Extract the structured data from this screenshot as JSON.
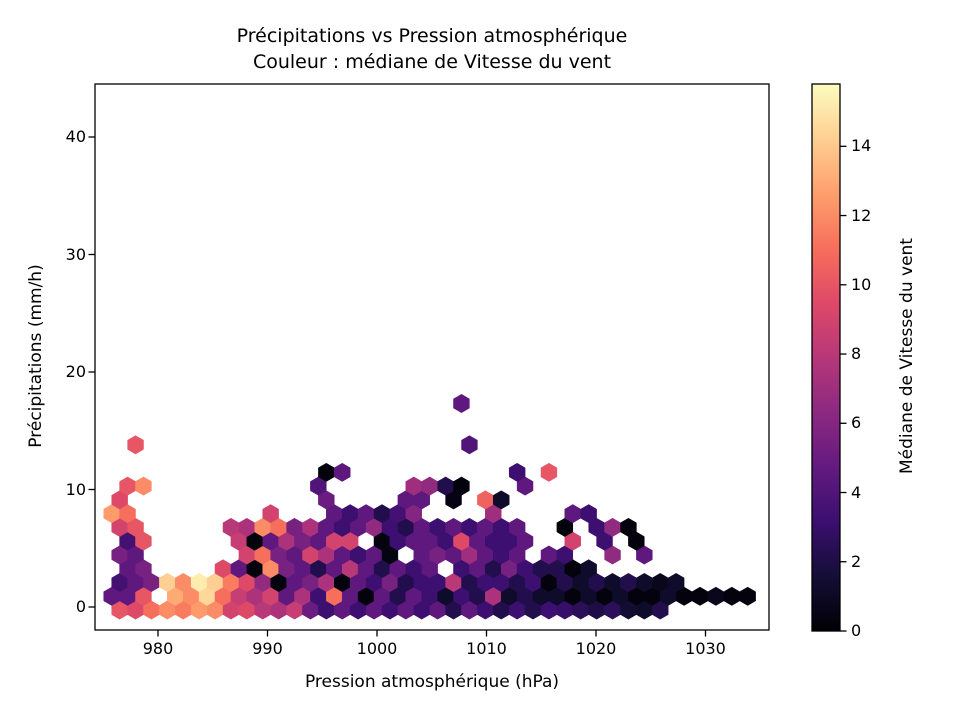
{
  "figure": {
    "title_line1": "Précipitations vs Pression atmosphérique",
    "title_line2": "Couleur : médiane de Vitesse du vent"
  },
  "chart_data": {
    "type": "hexbin",
    "title": "Précipitations vs Pression atmosphérique\nCouleur : médiane de Vitesse du vent",
    "xlabel": "Pression atmosphérique (hPa)",
    "ylabel": "Précipitations (mm/h)",
    "colorbar_label": "Médiane de Vitesse du vent",
    "xlim": [
      974.2,
      1035.8
    ],
    "ylim": [
      -2.0,
      44.5
    ],
    "x_ticks": [
      980,
      990,
      1000,
      1010,
      1020,
      1030
    ],
    "y_ticks": [
      0,
      10,
      20,
      30,
      40
    ],
    "colorbar_ticks": [
      0,
      2,
      4,
      6,
      8,
      10,
      12,
      14
    ],
    "vmin": 0,
    "vmax": 15.8,
    "colormap": "magma",
    "colormap_stops": [
      "#000004",
      "#140e36",
      "#3b0f70",
      "#641a80",
      "#8c2981",
      "#b73779",
      "#de4968",
      "#f76f5c",
      "#fe9f6d",
      "#fecf92",
      "#fcfdbf"
    ],
    "hex_grid": {
      "pressure_origin_hpa": 975.77,
      "pressure_step_hpa": 1.452,
      "even_row_offset_hpa": 0.726,
      "precip_origin_mmh": -0.26,
      "precip_step_mmh": 1.172,
      "note": "cells are [column_index, median_wind_value]; pressure = origin + step*i + (j even ? offset : 0); precip = origin + step*j"
    },
    "rows": [
      {
        "j": 0,
        "cells": [
          [
            0,
            10
          ],
          [
            1,
            9.5
          ],
          [
            2,
            11
          ],
          [
            3,
            12
          ],
          [
            4,
            11.5
          ],
          [
            5,
            12.5
          ],
          [
            6,
            12
          ],
          [
            7,
            9
          ],
          [
            8,
            9.5
          ],
          [
            9,
            8
          ],
          [
            10,
            7.5
          ],
          [
            11,
            8.5
          ],
          [
            12,
            5
          ],
          [
            13,
            3.2
          ],
          [
            14,
            4.5
          ],
          [
            15,
            3.2
          ],
          [
            16,
            4.5
          ],
          [
            17,
            3.2
          ],
          [
            18,
            4.5
          ],
          [
            19,
            3.2
          ],
          [
            20,
            4.5
          ],
          [
            21,
            2.2
          ],
          [
            22,
            4.5
          ],
          [
            23,
            3.2
          ],
          [
            24,
            2.2
          ],
          [
            25,
            3.2
          ],
          [
            26,
            2.2
          ],
          [
            27,
            3.2
          ],
          [
            28,
            3
          ],
          [
            29,
            2.5
          ],
          [
            30,
            2
          ],
          [
            31,
            2.5
          ],
          [
            32,
            1.5
          ],
          [
            33,
            1.2
          ],
          [
            34,
            2.2
          ]
        ]
      },
      {
        "j": 1,
        "cells": [
          [
            0,
            4.5
          ],
          [
            1,
            4.5
          ],
          [
            2,
            10
          ],
          [
            4,
            13
          ],
          [
            5,
            12
          ],
          [
            6,
            14.5
          ],
          [
            7,
            11
          ],
          [
            8,
            8.5
          ],
          [
            9,
            7.5
          ],
          [
            10,
            9
          ],
          [
            11,
            4.5
          ],
          [
            12,
            7.5
          ],
          [
            13,
            3.2
          ],
          [
            14,
            11
          ],
          [
            15,
            4.5
          ],
          [
            16,
            0.3
          ],
          [
            17,
            4.5
          ],
          [
            18,
            2.2
          ],
          [
            19,
            4.5
          ],
          [
            20,
            3.2
          ],
          [
            21,
            1.2
          ],
          [
            22,
            3.2
          ],
          [
            23,
            2.2
          ],
          [
            24,
            7.5
          ],
          [
            25,
            1.2
          ],
          [
            26,
            2.2
          ],
          [
            27,
            1.2
          ],
          [
            28,
            1.2
          ],
          [
            29,
            0.3
          ],
          [
            30,
            1.2
          ],
          [
            31,
            0.3
          ],
          [
            32,
            1.2
          ],
          [
            33,
            0.3
          ],
          [
            34,
            0.3
          ],
          [
            35,
            1.2
          ],
          [
            36,
            0.3
          ],
          [
            37,
            0.3
          ],
          [
            38,
            0.8
          ],
          [
            39,
            0.3
          ],
          [
            40,
            0.3
          ]
        ]
      },
      {
        "j": 2,
        "cells": [
          [
            0,
            3.5
          ],
          [
            1,
            4.5
          ],
          [
            2,
            5.5
          ],
          [
            3,
            14.2
          ],
          [
            4,
            12
          ],
          [
            5,
            15.2
          ],
          [
            6,
            14.2
          ],
          [
            7,
            11.5
          ],
          [
            8,
            9.5
          ],
          [
            9,
            6.5
          ],
          [
            10,
            0.3
          ],
          [
            11,
            4.5
          ],
          [
            12,
            5.5
          ],
          [
            13,
            7.5
          ],
          [
            14,
            0.3
          ],
          [
            15,
            4.5
          ],
          [
            16,
            3.2
          ],
          [
            17,
            5.5
          ],
          [
            18,
            2.2
          ],
          [
            19,
            3.2
          ],
          [
            20,
            3.2
          ],
          [
            21,
            8
          ],
          [
            22,
            2.2
          ],
          [
            23,
            3.2
          ],
          [
            24,
            3.2
          ],
          [
            25,
            2.2
          ],
          [
            26,
            3.2
          ],
          [
            27,
            0.3
          ],
          [
            28,
            2.2
          ],
          [
            29,
            1.2
          ],
          [
            30,
            2.2
          ],
          [
            31,
            1.2
          ],
          [
            32,
            2.2
          ],
          [
            33,
            1.2
          ],
          [
            34,
            0.8
          ],
          [
            35,
            1.2
          ]
        ]
      },
      {
        "j": 3,
        "cells": [
          [
            1,
            4.5
          ],
          [
            2,
            5.5
          ],
          [
            7,
            9.5
          ],
          [
            8,
            4.5
          ],
          [
            9,
            0.3
          ],
          [
            10,
            12
          ],
          [
            11,
            5.5
          ],
          [
            12,
            4.5
          ],
          [
            13,
            2.2
          ],
          [
            14,
            4.5
          ],
          [
            15,
            8
          ],
          [
            16,
            4.5
          ],
          [
            17,
            2.2
          ],
          [
            18,
            4.5
          ],
          [
            19,
            3.2
          ],
          [
            20,
            4.5
          ],
          [
            22,
            3.2
          ],
          [
            23,
            4.5
          ],
          [
            24,
            2.2
          ],
          [
            25,
            5.5
          ],
          [
            26,
            3.2
          ],
          [
            27,
            2.2
          ],
          [
            28,
            2.2
          ],
          [
            29,
            0.3
          ],
          [
            30,
            1.2
          ]
        ]
      },
      {
        "j": 4,
        "cells": [
          [
            0,
            5.5
          ],
          [
            1,
            4.5
          ],
          [
            8,
            9
          ],
          [
            9,
            11
          ],
          [
            10,
            5.5
          ],
          [
            11,
            4.5
          ],
          [
            12,
            9
          ],
          [
            13,
            7.5
          ],
          [
            14,
            4.5
          ],
          [
            15,
            3.2
          ],
          [
            16,
            4.5
          ],
          [
            17,
            0.4
          ],
          [
            19,
            4.5
          ],
          [
            20,
            5.5
          ],
          [
            21,
            4.5
          ],
          [
            22,
            7
          ],
          [
            23,
            4.5
          ],
          [
            24,
            3.2
          ],
          [
            25,
            4.5
          ],
          [
            27,
            4.5
          ],
          [
            28,
            3.2
          ],
          [
            31,
            6.5
          ],
          [
            33,
            4.5
          ]
        ]
      },
      {
        "j": 5,
        "cells": [
          [
            1,
            3.5
          ],
          [
            2,
            10
          ],
          [
            8,
            8.5
          ],
          [
            9,
            0.3
          ],
          [
            10,
            4.5
          ],
          [
            11,
            7.5
          ],
          [
            12,
            5.5
          ],
          [
            13,
            4.5
          ],
          [
            14,
            9
          ],
          [
            15,
            9
          ],
          [
            17,
            0.4
          ],
          [
            18,
            3.2
          ],
          [
            19,
            4.5
          ],
          [
            20,
            4.5
          ],
          [
            21,
            3.2
          ],
          [
            22,
            9.5
          ],
          [
            23,
            4.5
          ],
          [
            24,
            3.2
          ],
          [
            25,
            3.2
          ],
          [
            26,
            4.5
          ],
          [
            29,
            9
          ],
          [
            31,
            3.2
          ],
          [
            33,
            0.3
          ]
        ]
      },
      {
        "j": 6,
        "cells": [
          [
            0,
            9
          ],
          [
            1,
            10
          ],
          [
            7,
            8
          ],
          [
            8,
            7.5
          ],
          [
            9,
            12
          ],
          [
            10,
            11
          ],
          [
            11,
            5.5
          ],
          [
            12,
            7.5
          ],
          [
            13,
            4.5
          ],
          [
            14,
            3.2
          ],
          [
            15,
            4.5
          ],
          [
            16,
            6.5
          ],
          [
            17,
            3.2
          ],
          [
            18,
            2.2
          ],
          [
            19,
            4.5
          ],
          [
            20,
            3.2
          ],
          [
            21,
            4.5
          ],
          [
            22,
            3.2
          ],
          [
            23,
            4.5
          ],
          [
            24,
            3.2
          ],
          [
            25,
            4.5
          ],
          [
            28,
            0.3
          ],
          [
            30,
            3.2
          ],
          [
            31,
            6.5
          ],
          [
            32,
            0.3
          ]
        ]
      },
      {
        "j": 7,
        "cells": [
          [
            0,
            12.5
          ],
          [
            1,
            11
          ],
          [
            10,
            9
          ],
          [
            14,
            4.5
          ],
          [
            15,
            3.2
          ],
          [
            16,
            4.5
          ],
          [
            17,
            2.2
          ],
          [
            18,
            3.5
          ],
          [
            19,
            6
          ],
          [
            24,
            7
          ],
          [
            29,
            4.5
          ],
          [
            30,
            3.2
          ]
        ]
      },
      {
        "j": 8,
        "cells": [
          [
            0,
            9.5
          ],
          [
            13,
            5
          ],
          [
            18,
            4.5
          ],
          [
            19,
            4.5
          ],
          [
            21,
            0.5
          ],
          [
            23,
            10.5
          ],
          [
            24,
            1.2
          ]
        ]
      },
      {
        "j": 9,
        "cells": [
          [
            1,
            10
          ],
          [
            2,
            12
          ],
          [
            13,
            4
          ],
          [
            19,
            7
          ],
          [
            20,
            6.5
          ],
          [
            21,
            2.2
          ],
          [
            22,
            0.3
          ],
          [
            26,
            4.5
          ]
        ]
      },
      {
        "j": 10,
        "cells": [
          [
            13,
            0.3
          ],
          [
            14,
            4.5
          ],
          [
            25,
            3.2
          ],
          [
            27,
            10
          ]
        ]
      },
      {
        "j": 12,
        "cells": [
          [
            1,
            10
          ],
          [
            22,
            4
          ]
        ]
      },
      {
        "j": 15,
        "cells": [
          [
            22,
            4.5
          ]
        ]
      }
    ]
  }
}
